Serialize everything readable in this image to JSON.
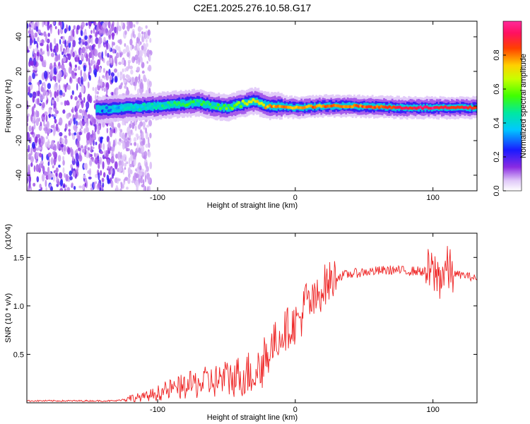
{
  "title": "C2E1.2025.276.10.58.G17",
  "chart_data": [
    {
      "type": "heatmap",
      "xlabel": "Height of straight line (km)",
      "ylabel": "Frequency (Hz)",
      "xlim": [
        -195,
        132
      ],
      "ylim": [
        -49,
        49
      ],
      "xticks": [
        -100,
        0,
        100
      ],
      "yticks": [
        -40,
        -20,
        0,
        20,
        40
      ],
      "colorbar": {
        "label": "Normalized spectral amplitude",
        "range": [
          0,
          1
        ],
        "ticks": [
          "0.0",
          "0.2",
          "0.4",
          "0.6",
          "0.8"
        ],
        "tick_values": [
          0.0,
          0.2,
          0.4,
          0.6,
          0.8
        ]
      },
      "ridge": {
        "x": [
          -140,
          -120,
          -100,
          -85,
          -70,
          -60,
          -50,
          -40,
          -30,
          -20,
          -10,
          0,
          20,
          40,
          60,
          80,
          100,
          110,
          132
        ],
        "freq": [
          -2,
          -1,
          0,
          1,
          2,
          0,
          -1,
          1,
          3,
          0,
          0,
          -1,
          0,
          0,
          -0.5,
          -1,
          -1,
          -1,
          -1
        ],
        "amplitude": [
          0.3,
          0.4,
          0.45,
          0.5,
          0.5,
          0.5,
          0.55,
          0.6,
          0.7,
          0.75,
          0.8,
          0.75,
          0.8,
          0.8,
          0.85,
          0.9,
          0.95,
          0.9,
          0.9
        ]
      },
      "noise_region": [
        -195,
        -105
      ]
    },
    {
      "type": "line",
      "xlabel": "Height of straight line (km)",
      "ylabel": "SNR (10 * v/v)",
      "y_multiplier": "(x10^4)",
      "xlim": [
        -195,
        132
      ],
      "ylim": [
        0,
        1.75
      ],
      "xticks": [
        -100,
        0,
        100
      ],
      "yticks": [
        0.5,
        1.0,
        1.5
      ],
      "ytick_labels": [
        "0.5",
        "1.0",
        "1.5"
      ],
      "series": [
        {
          "name": "SNR",
          "color": "#ee2222",
          "x": [
            -195,
            -130,
            -120,
            -110,
            -100,
            -90,
            -80,
            -70,
            -60,
            -50,
            -40,
            -30,
            -25,
            -20,
            -15,
            -10,
            -5,
            0,
            5,
            8,
            10,
            15,
            20,
            25,
            30,
            40,
            50,
            60,
            70,
            80,
            90,
            100,
            105,
            108,
            110,
            115,
            120,
            125,
            132
          ],
          "y": [
            0.02,
            0.02,
            0.05,
            0.06,
            0.1,
            0.14,
            0.17,
            0.2,
            0.22,
            0.25,
            0.28,
            0.32,
            0.38,
            0.5,
            0.62,
            0.72,
            0.78,
            0.82,
            0.9,
            1.1,
            1.0,
            1.05,
            1.2,
            1.25,
            1.3,
            1.33,
            1.35,
            1.36,
            1.37,
            1.36,
            1.36,
            1.34,
            1.3,
            1.35,
            1.38,
            1.33,
            1.32,
            1.31,
            1.28
          ]
        }
      ]
    }
  ]
}
